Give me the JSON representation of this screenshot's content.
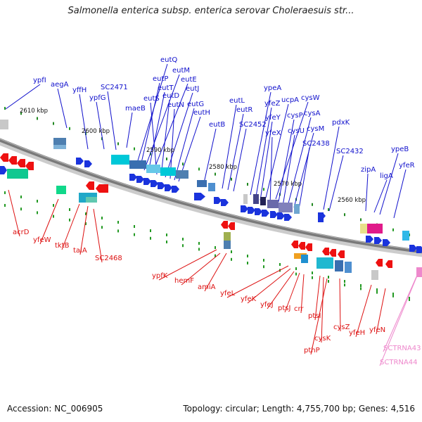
{
  "title": "Salmonella enterica subsp. enterica serovar Choleraesuis str...",
  "footer": {
    "accession": "Accession: NC_006905",
    "stats": "Topology: circular; Length: 4,755,700 bp; Genes: 4,516"
  },
  "colors": {
    "forward_label": "#1010cc",
    "reverse_label": "#dd1111",
    "rna_label": "#ee88cc",
    "backbone": "#888888"
  },
  "kbp_ticks": [
    "2610 kbp",
    "2600 kbp",
    "2590 kbp",
    "2580 kbp",
    "2570 kbp",
    "2560 kbp"
  ],
  "forward_genes": [
    "ypfI",
    "aegA",
    "yffH",
    "ypfG",
    "SC2471",
    "maeB",
    "eutQ",
    "eutP",
    "eutM",
    "eutT",
    "eutE",
    "eutS",
    "eutD",
    "eutJ",
    "eutN",
    "eutG",
    "eutH",
    "eutB",
    "eutL",
    "eutR",
    "SC2452",
    "ypeA",
    "yfeZ",
    "ucpA",
    "cysW",
    "yfeY",
    "cysP",
    "cysA",
    "yfeX",
    "cysU",
    "cysM",
    "SC2438",
    "pdxK",
    "SC2432",
    "ypeB",
    "yfeR",
    "zipA",
    "ligA"
  ],
  "reverse_genes": [
    "acrD",
    "yfeW",
    "tktB",
    "talA",
    "SC2468",
    "ypfK",
    "hemF",
    "amiA",
    "yfeL",
    "yfeK",
    "yfeJ",
    "ptsJ",
    "crr",
    "ptsI",
    "cysK",
    "pthP",
    "cysZ",
    "yfeH",
    "yfeN"
  ],
  "rna_genes": [
    "SCTRNA43",
    "SCTRNA44"
  ]
}
